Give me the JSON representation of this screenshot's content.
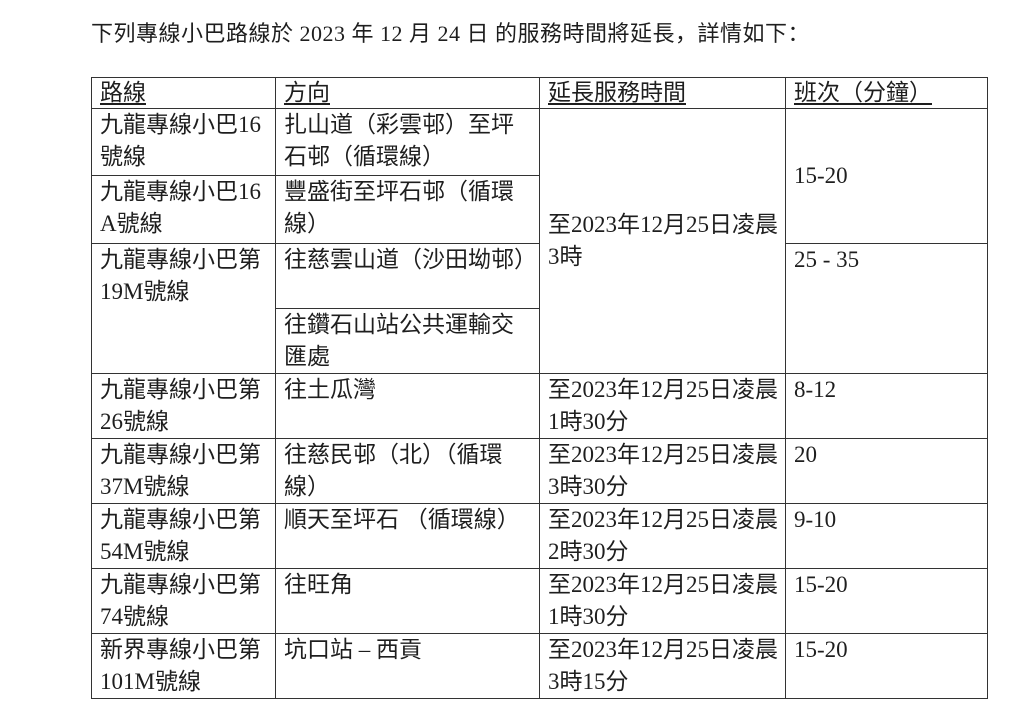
{
  "intro": "下列專線小巴路線於 2023 年 12 月 24 日 的服務時間將延長，詳情如下：",
  "headers": [
    "路線",
    "方向",
    "延長服務時間",
    "班次（分鐘）"
  ],
  "rows": [
    {
      "route": "九龍專線小巴16號線",
      "direction": "扎山道（彩雲邨）至坪石邨（循環線）"
    },
    {
      "route": "九龍專線小巴16A號線",
      "direction": "豐盛街至坪石邨（循環線）"
    },
    {
      "route": "九龍專線小巴第19M號線",
      "direction": "往慈雲山道（沙田坳邨）"
    },
    {
      "direction": "往鑽石山站公共運輸交匯處"
    },
    {
      "route": "九龍專線小巴第26號線",
      "direction": "往土瓜灣",
      "time": "至2023年12月25日凌晨1時30分",
      "freq": "8-12"
    },
    {
      "route": "九龍專線小巴第37M號線",
      "direction": "往慈民邨（北）（循環線）",
      "time": "至2023年12月25日凌晨3時30分",
      "freq": "20"
    },
    {
      "route": "九龍專線小巴第54M號線",
      "direction": "順天至坪石 （循環線）",
      "time": "至2023年12月25日凌晨2時30分",
      "freq": "9-10"
    },
    {
      "route": "九龍專線小巴第74號線",
      "direction": "往旺角",
      "time": "至2023年12月25日凌晨1時30分",
      "freq": "15-20"
    },
    {
      "route": "新界專線小巴第101M號線",
      "direction": "坑口站 – 西貢",
      "time": "至2023年12月25日凌晨3時15分",
      "freq": "15-20"
    }
  ],
  "merged": {
    "time_rows_1_4": "至2023年12月25日凌晨3時",
    "freq_rows_1_2": "15-20",
    "freq_rows_3_4": "25 - 35"
  }
}
